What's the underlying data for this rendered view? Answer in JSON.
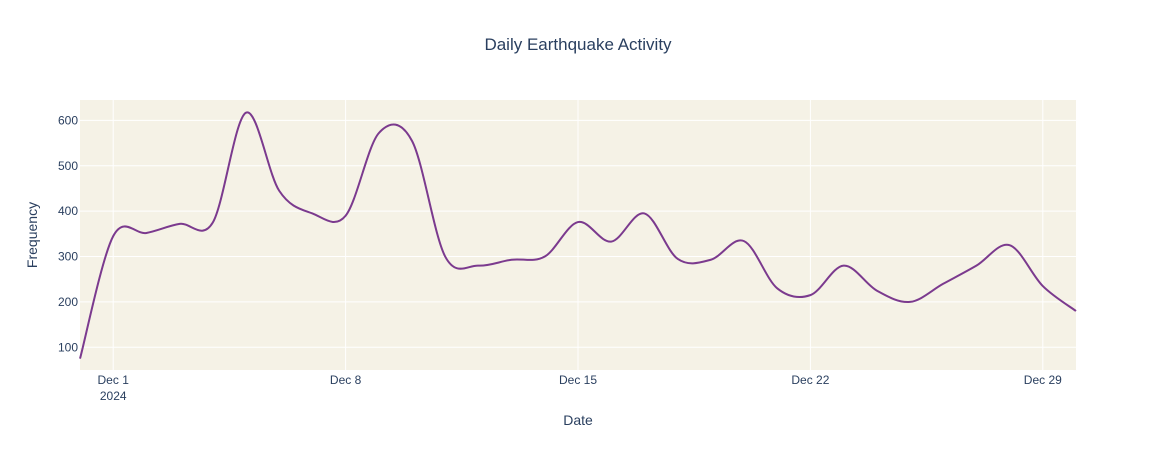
{
  "colors": {
    "plot_bg": "#f5f2e6",
    "line": "#7b3a8e",
    "grid": "#ffffff",
    "text": "#2a3f5f"
  },
  "chart_data": {
    "type": "line",
    "title": "Daily Earthquake Activity",
    "xlabel": "Date",
    "ylabel": "Frequency",
    "x_tick_labels": [
      "Dec 1",
      "Dec 8",
      "Dec 15",
      "Dec 22",
      "Dec 29"
    ],
    "x_tick_dates": [
      "2024-12-01",
      "2024-12-08",
      "2024-12-15",
      "2024-12-22",
      "2024-12-29"
    ],
    "x_year_label": "2024",
    "x_range": [
      "2024-11-30",
      "2024-12-30"
    ],
    "y_ticks": [
      100,
      200,
      300,
      400,
      500,
      600
    ],
    "y_tick_labels": [
      "100",
      "200",
      "300",
      "400",
      "500",
      "600"
    ],
    "y_range": [
      50,
      645
    ],
    "grid": true,
    "line_shape": "smooth",
    "series": [
      {
        "x": [
          "2024-11-30",
          "2024-12-01",
          "2024-12-02",
          "2024-12-03",
          "2024-12-04",
          "2024-12-05",
          "2024-12-06",
          "2024-12-07",
          "2024-12-08",
          "2024-12-09",
          "2024-12-10",
          "2024-12-11",
          "2024-12-12",
          "2024-12-13",
          "2024-12-14",
          "2024-12-15",
          "2024-12-16",
          "2024-12-17",
          "2024-12-18",
          "2024-12-19",
          "2024-12-20",
          "2024-12-21",
          "2024-12-22",
          "2024-12-23",
          "2024-12-24",
          "2024-12-25",
          "2024-12-26",
          "2024-12-27",
          "2024-12-28",
          "2024-12-29",
          "2024-12-30"
        ],
        "y": [
          75,
          345,
          352,
          372,
          375,
          617,
          445,
          395,
          390,
          572,
          555,
          300,
          280,
          293,
          300,
          376,
          333,
          395,
          295,
          293,
          334,
          230,
          215,
          280,
          225,
          200,
          240,
          280,
          325,
          235,
          180
        ]
      }
    ]
  }
}
